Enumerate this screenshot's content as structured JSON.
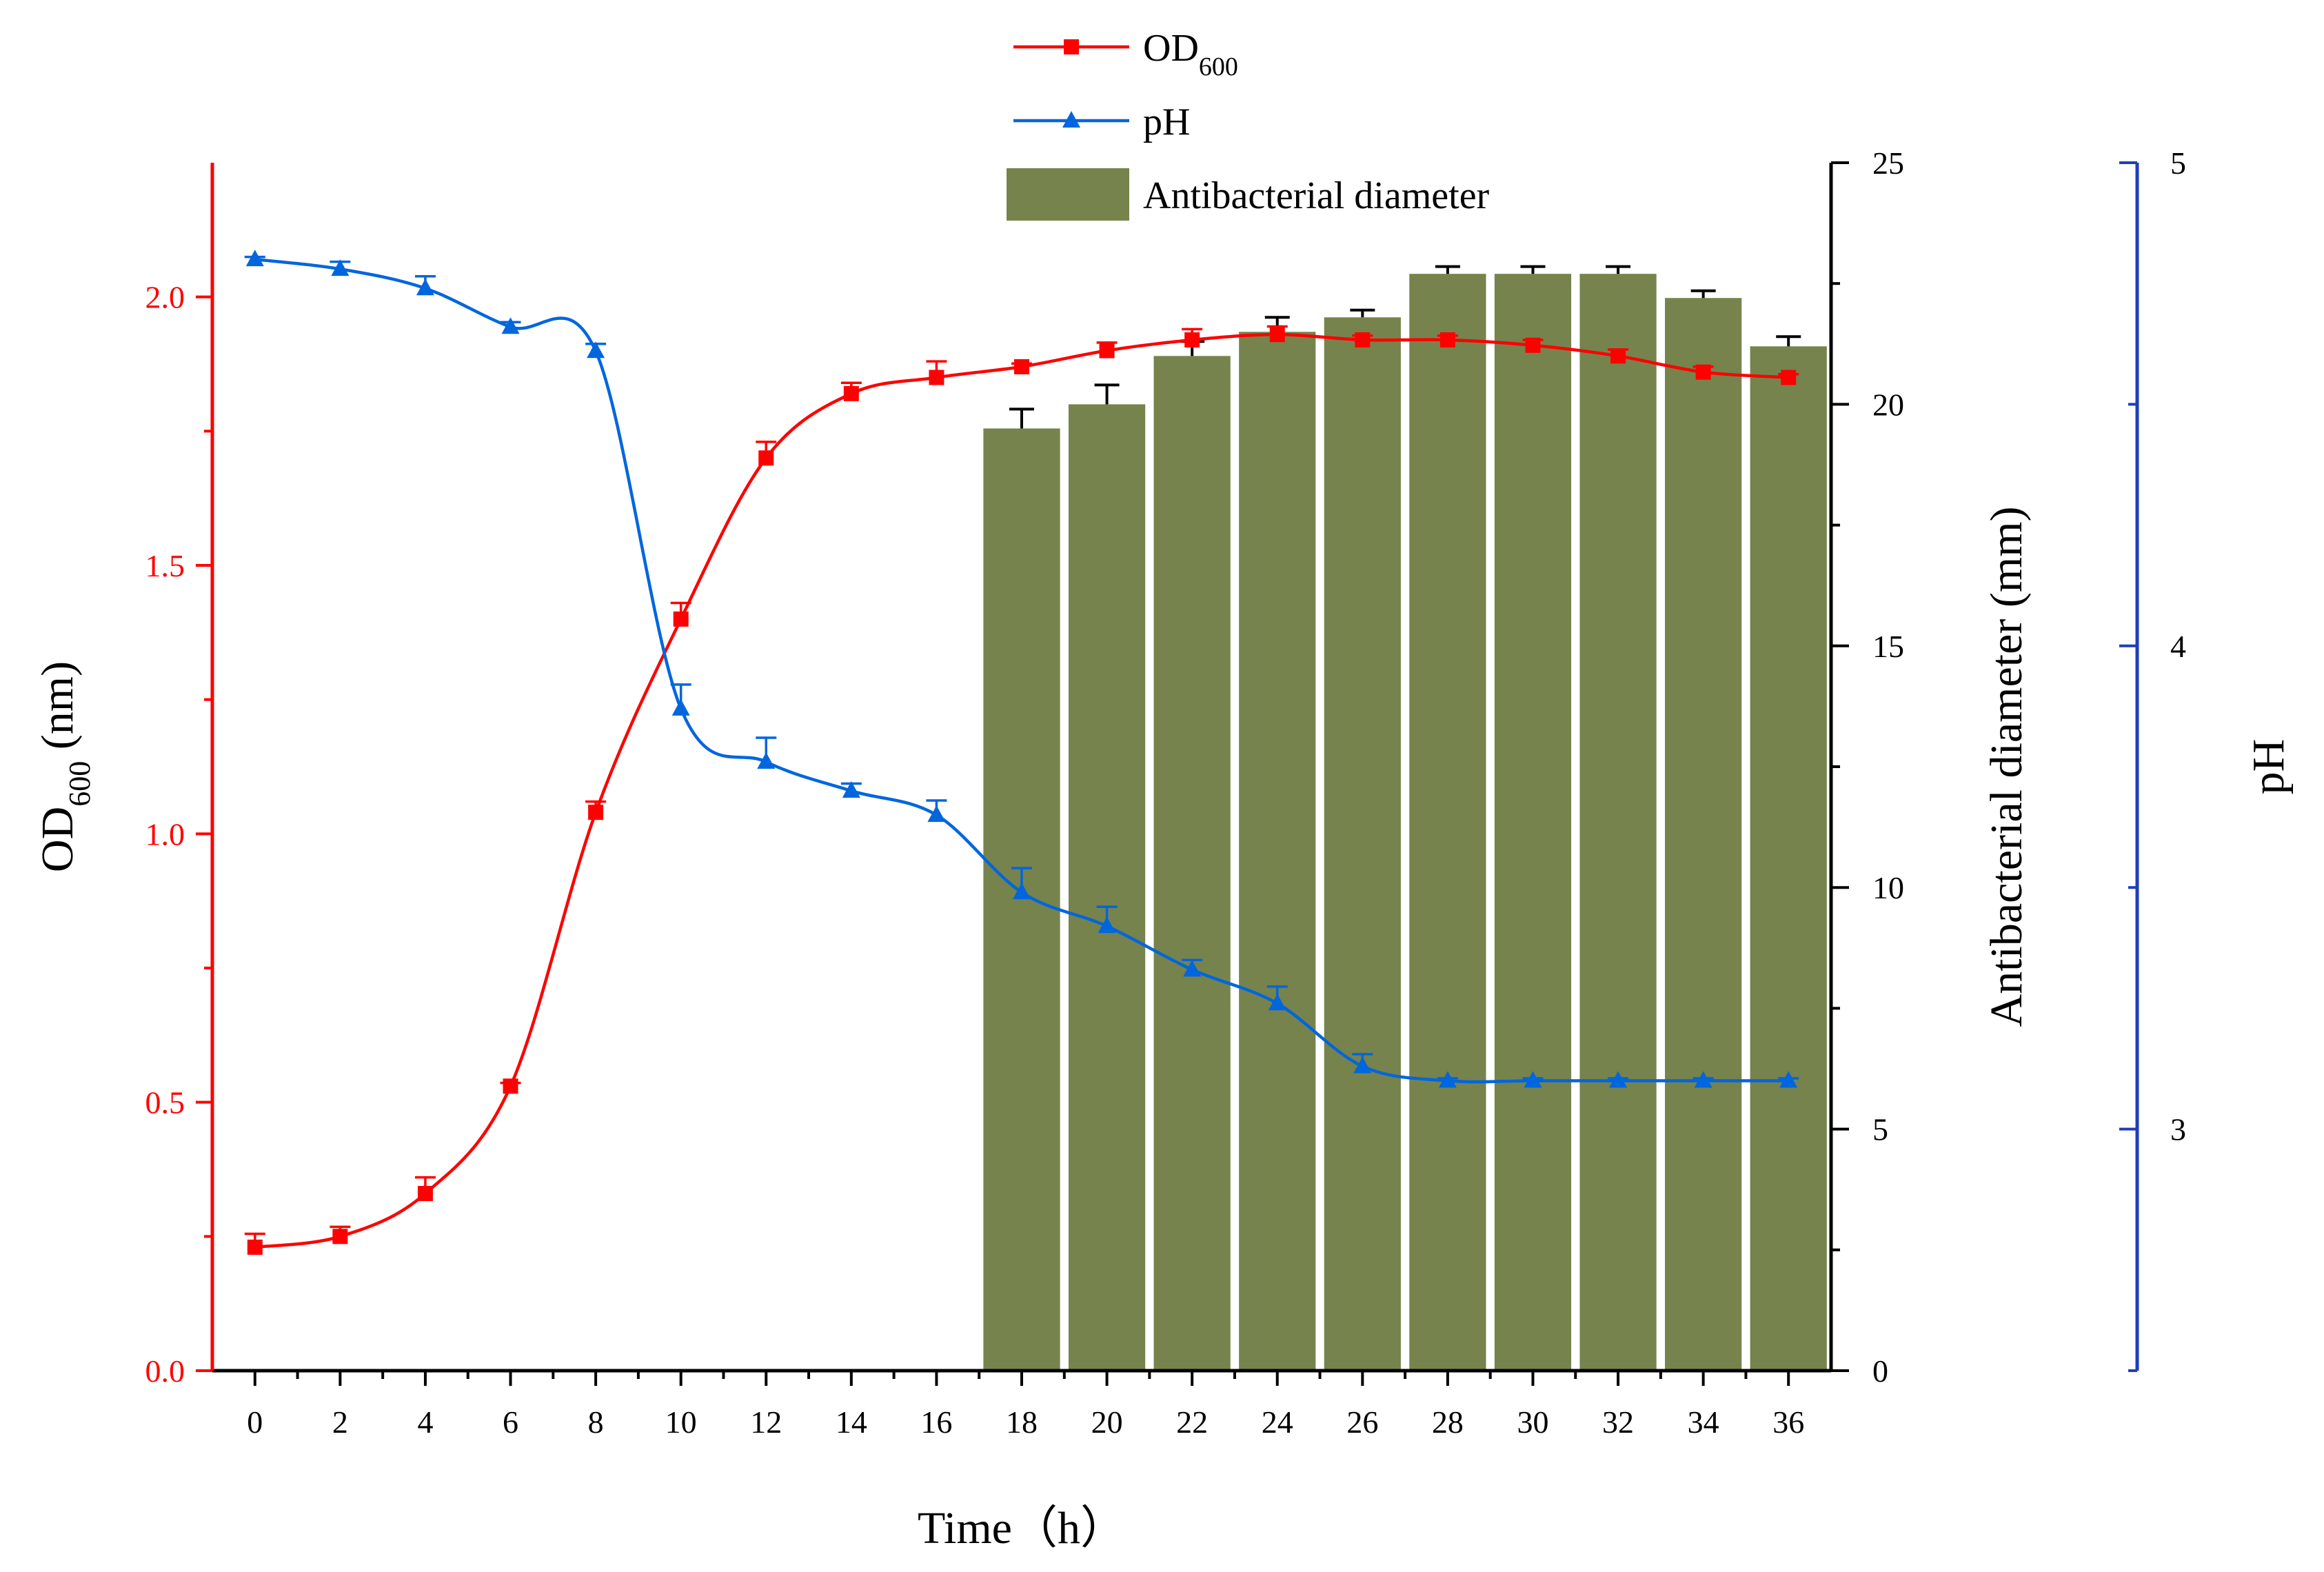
{
  "chart_data": {
    "type": "combo",
    "x": {
      "label": "Time（h）",
      "values": [
        0,
        2,
        4,
        6,
        8,
        10,
        12,
        14,
        16,
        18,
        20,
        22,
        24,
        26,
        28,
        30,
        32,
        34,
        36
      ],
      "tick_labels": [
        "0",
        "2",
        "4",
        "6",
        "8",
        "10",
        "12",
        "14",
        "16",
        "18",
        "20",
        "22",
        "24",
        "26",
        "28",
        "30",
        "32",
        "34",
        "36"
      ],
      "range": [
        -1,
        37
      ]
    },
    "left_axis": {
      "label_main": "OD",
      "label_sub": "600",
      "label_unit": " (nm)",
      "range": [
        0,
        2.25
      ],
      "ticks": [
        0.0,
        0.5,
        1.0,
        1.5,
        2.0
      ],
      "tick_labels": [
        "0.0",
        "0.5",
        "1.0",
        "1.5",
        "2.0"
      ],
      "color": "#ff0000"
    },
    "right_axis_1": {
      "label": "Antibacterial diameter (mm)",
      "range": [
        0,
        25
      ],
      "ticks": [
        0,
        5,
        10,
        15,
        20,
        25
      ],
      "tick_labels": [
        "0",
        "5",
        "10",
        "15",
        "20",
        "25"
      ],
      "color": "#000000"
    },
    "right_axis_2": {
      "label": "pH",
      "range": [
        2.5,
        5.0
      ],
      "ticks": [
        3,
        4,
        5
      ],
      "tick_labels": [
        "3",
        "4",
        "5"
      ],
      "color": "#1f3fb8"
    },
    "series": [
      {
        "name": "OD",
        "name_sub": "600",
        "type": "line",
        "axis": "left",
        "marker": "square",
        "color": "#ff0000",
        "x": [
          0,
          2,
          4,
          6,
          8,
          10,
          12,
          14,
          16,
          18,
          20,
          22,
          24,
          26,
          28,
          30,
          32,
          34,
          36
        ],
        "values": [
          0.23,
          0.25,
          0.33,
          0.53,
          1.04,
          1.4,
          1.7,
          1.82,
          1.85,
          1.87,
          1.9,
          1.92,
          1.93,
          1.92,
          1.92,
          1.91,
          1.89,
          1.86,
          1.85
        ],
        "errors": [
          0.025,
          0.018,
          0.03,
          0.006,
          0.02,
          0.03,
          0.03,
          0.02,
          0.03,
          0.006,
          0.015,
          0.02,
          0.015,
          0.008,
          0.008,
          0.01,
          0.012,
          0.01,
          0.006
        ]
      },
      {
        "name": "pH",
        "type": "line",
        "axis": "right_2",
        "marker": "triangle",
        "color": "#0066dd",
        "x": [
          0,
          2,
          4,
          6,
          8,
          10,
          12,
          14,
          16,
          18,
          20,
          22,
          24,
          26,
          28,
          30,
          32,
          34,
          36
        ],
        "values": [
          4.8,
          4.78,
          4.74,
          4.66,
          4.61,
          3.87,
          3.76,
          3.7,
          3.65,
          3.49,
          3.42,
          3.33,
          3.26,
          3.13,
          3.1,
          3.1,
          3.1,
          3.1,
          3.1
        ],
        "errors": [
          0.005,
          0.015,
          0.025,
          0.01,
          0.015,
          0.05,
          0.05,
          0.015,
          0.03,
          0.05,
          0.04,
          0.02,
          0.035,
          0.025,
          0.005,
          0.005,
          0.005,
          0.005,
          0.005
        ]
      },
      {
        "name": "Antibacterial diameter",
        "type": "bar",
        "axis": "right_1",
        "color": "#76834d",
        "x": [
          18,
          20,
          22,
          24,
          26,
          28,
          30,
          32,
          34,
          36
        ],
        "values": [
          19.5,
          20.0,
          21.0,
          21.5,
          21.8,
          22.7,
          22.7,
          22.7,
          22.2,
          21.2
        ],
        "errors": [
          0.4,
          0.4,
          0.3,
          0.3,
          0.15,
          0.15,
          0.15,
          0.15,
          0.15,
          0.2
        ]
      }
    ],
    "legend": {
      "position": "top-center",
      "entries": [
        "OD600",
        "pH",
        "Antibacterial diameter"
      ]
    }
  }
}
